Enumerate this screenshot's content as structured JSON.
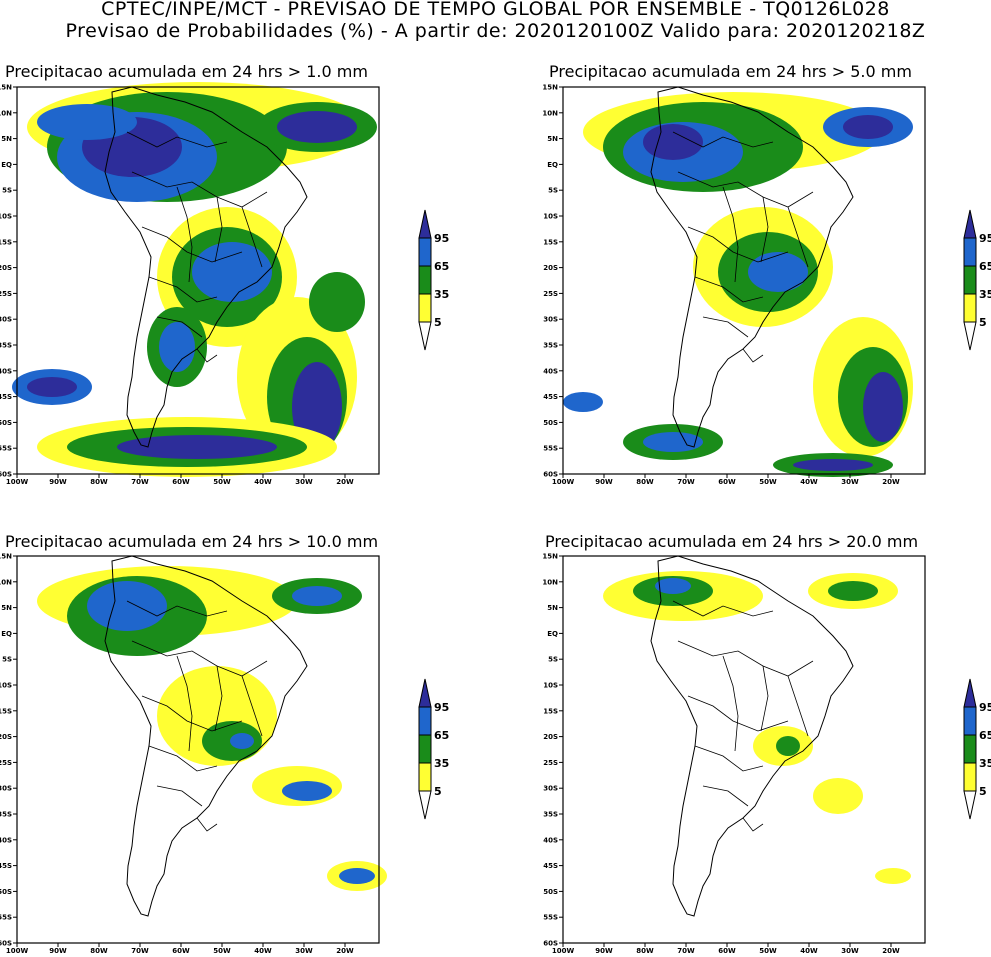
{
  "header": {
    "line1": "CPTEC/INPE/MCT - PREVISAO DE TEMPO GLOBAL POR ENSEMBLE - TQ0126L028",
    "line2": "Previsao de Probabilidades (%) -  A partir de: 2020120100Z  Valido para: 2020120218Z"
  },
  "axes": {
    "lat_labels": [
      "15N",
      "10N",
      "5N",
      "EQ",
      "5S",
      "10S",
      "15S",
      "20S",
      "25S",
      "30S",
      "35S",
      "40S",
      "45S",
      "50S",
      "55S",
      "60S"
    ],
    "lon_labels": [
      "100W",
      "90W",
      "80W",
      "70W",
      "60W",
      "50W",
      "40W",
      "30W",
      "20W"
    ]
  },
  "legend": {
    "levels": [
      "95",
      "65",
      "35",
      "5"
    ],
    "colors": {
      "c95": "#2d2d9a",
      "c65": "#1f66cc",
      "c35": "#1a8c1a",
      "c5": "#ffff33"
    }
  },
  "panels": [
    {
      "title": "Precipitacao acumulada em 24 hrs > 1.0 mm"
    },
    {
      "title": "Precipitacao acumulada em 24 hrs > 5.0 mm"
    },
    {
      "title": "Precipitacao acumulada em 24 hrs > 10.0 mm"
    },
    {
      "title": "Precipitacao acumulada em 24 hrs > 20.0 mm"
    }
  ]
}
